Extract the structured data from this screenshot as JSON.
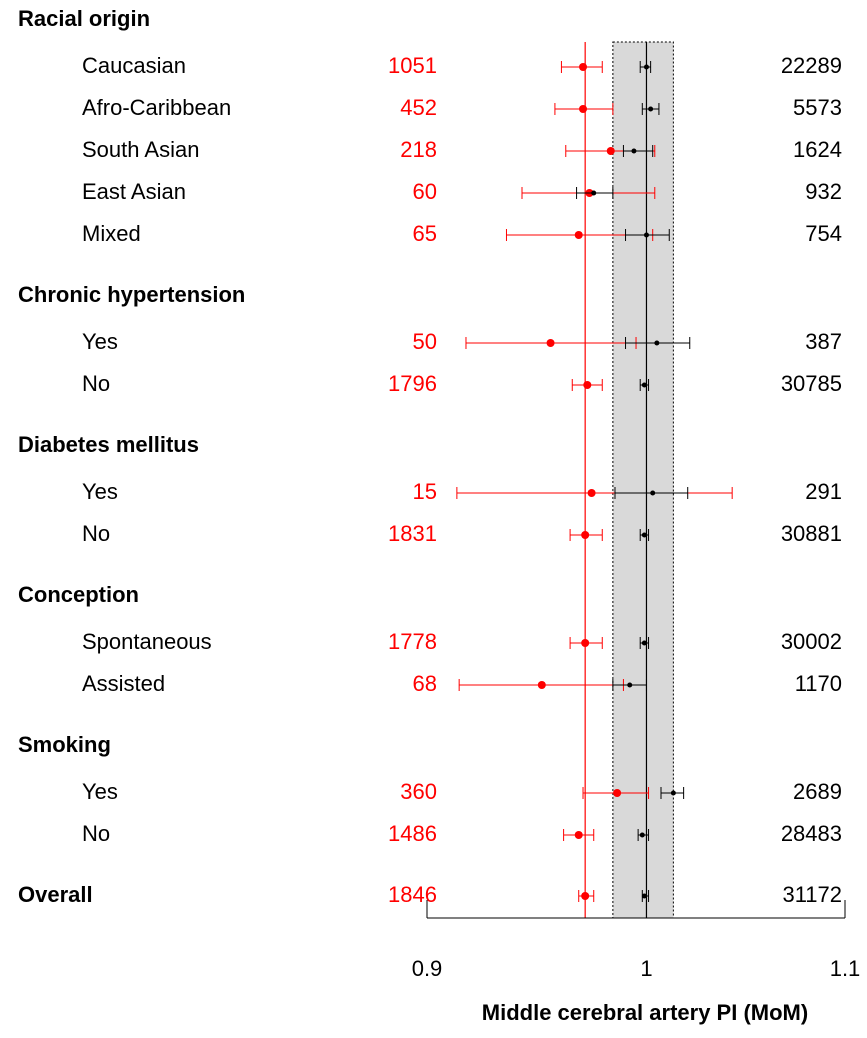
{
  "chart_data": {
    "type": "forest",
    "xlabel": "Middle cerebral artery PI (MoM)",
    "xlim": [
      0.9,
      1.1
    ],
    "xticks": [
      0.9,
      1,
      1.1
    ],
    "log_x": true,
    "reference_band": [
      0.984,
      1.013
    ],
    "reference_lines": [
      {
        "value": 0.971,
        "color": "#ff0000"
      },
      {
        "value": 1,
        "color": "#000000"
      }
    ],
    "case_color": "#ff0000",
    "control_color": "#000000",
    "groups": [
      {
        "label": "Racial origin",
        "rows": [
          {
            "label": "Caucasian",
            "case": {
              "n": 1051,
              "value": 0.97,
              "low": 0.96,
              "high": 0.979
            },
            "control": {
              "n": 22289,
              "value": 1.0,
              "low": 0.997,
              "high": 1.002
            }
          },
          {
            "label": "Afro-Caribbean",
            "case": {
              "n": 452,
              "value": 0.97,
              "low": 0.957,
              "high": 0.984
            },
            "control": {
              "n": 5573,
              "value": 1.002,
              "low": 0.998,
              "high": 1.006
            }
          },
          {
            "label": "South Asian",
            "case": {
              "n": 218,
              "value": 0.983,
              "low": 0.962,
              "high": 1.004
            },
            "control": {
              "n": 1624,
              "value": 0.994,
              "low": 0.989,
              "high": 1.003
            }
          },
          {
            "label": "East Asian",
            "case": {
              "n": 60,
              "value": 0.973,
              "low": 0.942,
              "high": 1.004
            },
            "control": {
              "n": 932,
              "value": 0.975,
              "low": 0.967,
              "high": 0.984
            }
          },
          {
            "label": "Mixed",
            "case": {
              "n": 65,
              "value": 0.968,
              "low": 0.935,
              "high": 1.003
            },
            "control": {
              "n": 754,
              "value": 1.0,
              "low": 0.99,
              "high": 1.011
            }
          }
        ]
      },
      {
        "label": "Chronic hypertension",
        "rows": [
          {
            "label": "Yes",
            "case": {
              "n": 50,
              "value": 0.955,
              "low": 0.917,
              "high": 0.995
            },
            "control": {
              "n": 387,
              "value": 1.005,
              "low": 0.99,
              "high": 1.021
            }
          },
          {
            "label": "No",
            "case": {
              "n": 1796,
              "value": 0.972,
              "low": 0.965,
              "high": 0.979
            },
            "control": {
              "n": 30785,
              "value": 0.999,
              "low": 0.997,
              "high": 1.001
            }
          }
        ]
      },
      {
        "label": "Diabetes mellitus",
        "rows": [
          {
            "label": "Yes",
            "case": {
              "n": 15,
              "value": 0.974,
              "low": 0.913,
              "high": 1.042
            },
            "control": {
              "n": 291,
              "value": 1.003,
              "low": 0.985,
              "high": 1.02
            }
          },
          {
            "label": "No",
            "case": {
              "n": 1831,
              "value": 0.971,
              "low": 0.964,
              "high": 0.979
            },
            "control": {
              "n": 30881,
              "value": 0.999,
              "low": 0.997,
              "high": 1.001
            }
          }
        ]
      },
      {
        "label": "Conception",
        "rows": [
          {
            "label": "Spontaneous",
            "case": {
              "n": 1778,
              "value": 0.971,
              "low": 0.964,
              "high": 0.979
            },
            "control": {
              "n": 30002,
              "value": 0.999,
              "low": 0.997,
              "high": 1.001
            }
          },
          {
            "label": "Assisted",
            "case": {
              "n": 68,
              "value": 0.951,
              "low": 0.914,
              "high": 0.989
            },
            "control": {
              "n": 1170,
              "value": 0.992,
              "low": 0.984,
              "high": 1.0
            }
          }
        ]
      },
      {
        "label": "Smoking",
        "rows": [
          {
            "label": "Yes",
            "case": {
              "n": 360,
              "value": 0.986,
              "low": 0.97,
              "high": 1.001
            },
            "control": {
              "n": 2689,
              "value": 1.013,
              "low": 1.007,
              "high": 1.018
            }
          },
          {
            "label": "No",
            "case": {
              "n": 1486,
              "value": 0.968,
              "low": 0.961,
              "high": 0.975
            },
            "control": {
              "n": 28483,
              "value": 0.998,
              "low": 0.996,
              "high": 1.001
            }
          }
        ]
      },
      {
        "label": "Overall",
        "case": {
          "n": 1846,
          "value": 0.971,
          "low": 0.968,
          "high": 0.975
        },
        "control": {
          "n": 31172,
          "value": 0.999,
          "low": 0.998,
          "high": 1.001
        }
      }
    ]
  }
}
